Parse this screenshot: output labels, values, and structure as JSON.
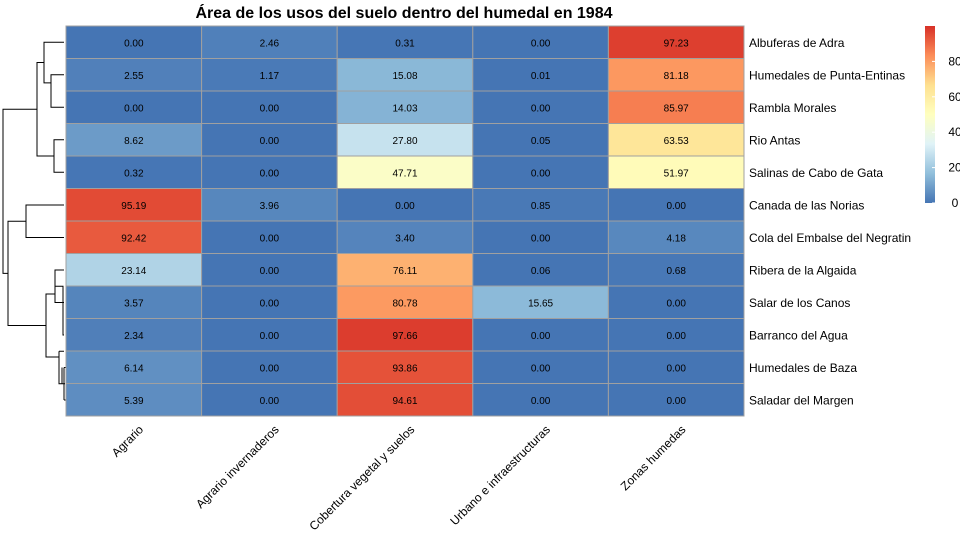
{
  "chart_data": {
    "type": "heatmap",
    "title": "Área de los usos del suelo dentro del humedal en 1984",
    "columns": [
      "Agrario",
      "Agrario invernaderos",
      "Cobertura vegetal y suelos",
      "Urbano e infraestructuras",
      "Zonas humedas"
    ],
    "rows": [
      "Albuferas de Adra",
      "Humedales de Punta-Entinas",
      "Rambla Morales",
      "Rio Antas",
      "Salinas de Cabo de Gata",
      "Canada de las Norias",
      "Cola del Embalse del Negratin",
      "Ribera de la Algaida",
      "Salar de los Canos",
      "Barranco del Agua",
      "Humedales de Baza",
      "Saladar del Margen"
    ],
    "values": [
      [
        0.0,
        2.46,
        0.31,
        0.0,
        97.23
      ],
      [
        2.55,
        1.17,
        15.08,
        0.01,
        81.18
      ],
      [
        0.0,
        0.0,
        14.03,
        0.0,
        85.97
      ],
      [
        8.62,
        0.0,
        27.8,
        0.05,
        63.53
      ],
      [
        0.32,
        0.0,
        47.71,
        0.0,
        51.97
      ],
      [
        95.19,
        3.96,
        0.0,
        0.85,
        0.0
      ],
      [
        92.42,
        0.0,
        3.4,
        0.0,
        4.18
      ],
      [
        23.14,
        0.0,
        76.11,
        0.06,
        0.68
      ],
      [
        3.57,
        0.0,
        80.78,
        15.65,
        0.0
      ],
      [
        2.34,
        0.0,
        97.66,
        0.0,
        0.0
      ],
      [
        6.14,
        0.0,
        93.86,
        0.0,
        0.0
      ],
      [
        5.39,
        0.0,
        94.61,
        0.0,
        0.0
      ]
    ],
    "value_labels": [
      [
        "0.00",
        "2.46",
        "0.31",
        "0.00",
        "97.23"
      ],
      [
        "2.55",
        "1.17",
        "15.08",
        "0.01",
        "81.18"
      ],
      [
        "0.00",
        "0.00",
        "14.03",
        "0.00",
        "85.97"
      ],
      [
        "8.62",
        "0.00",
        "27.80",
        "0.05",
        "63.53"
      ],
      [
        "0.32",
        "0.00",
        "47.71",
        "0.00",
        "51.97"
      ],
      [
        "95.19",
        "3.96",
        "0.00",
        "0.85",
        "0.00"
      ],
      [
        "92.42",
        "0.00",
        "3.40",
        "0.00",
        "4.18"
      ],
      [
        "23.14",
        "0.00",
        "76.11",
        "0.06",
        "0.68"
      ],
      [
        "3.57",
        "0.00",
        "80.78",
        "15.65",
        "0.00"
      ],
      [
        "2.34",
        "0.00",
        "97.66",
        "0.00",
        "0.00"
      ],
      [
        "6.14",
        "0.00",
        "93.86",
        "0.00",
        "0.00"
      ],
      [
        "5.39",
        "0.00",
        "94.61",
        "0.00",
        "0.00"
      ]
    ],
    "color_scale": {
      "range": [
        0,
        100
      ],
      "ticks": [
        "0",
        "20",
        "40",
        "60",
        "80"
      ],
      "tick_values": [
        0,
        20,
        40,
        60,
        80
      ],
      "palette": [
        "#4575B4",
        "#91BFDB",
        "#E0F3F8",
        "#FFFFBF",
        "#FEE090",
        "#FC8D59",
        "#D73027"
      ],
      "legend_placement": "right"
    },
    "row_dendrogram": true,
    "cell_border_color": "#A0A0A0"
  }
}
